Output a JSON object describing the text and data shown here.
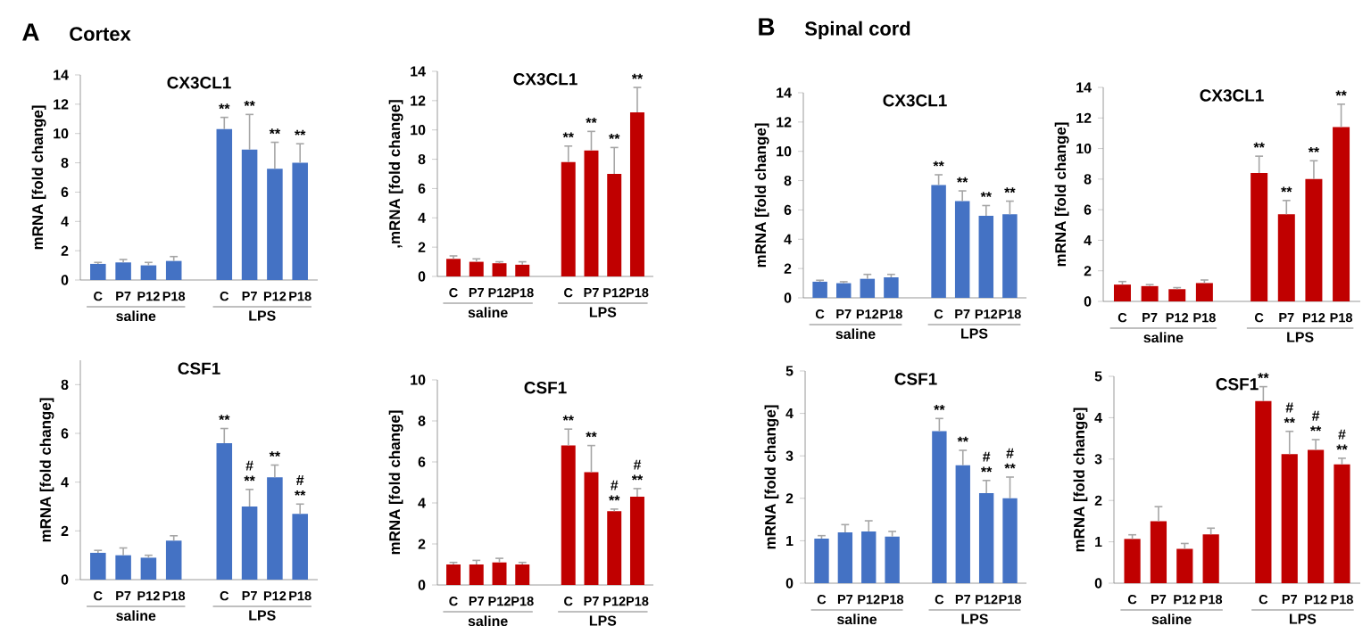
{
  "chart_data": [
    {
      "type": "bar",
      "title": "CX3CL1",
      "ylabel": "mRNA [fold change]",
      "color": "#4472c4",
      "categories": [
        "C",
        "P7",
        "P12",
        "P18",
        null,
        "C",
        "P7",
        "P12",
        "P18"
      ],
      "values": [
        1.1,
        1.2,
        1.0,
        1.3,
        null,
        10.3,
        8.9,
        7.6,
        8.0
      ],
      "errors": [
        0.1,
        0.2,
        0.2,
        0.3,
        null,
        0.8,
        2.4,
        1.8,
        1.3
      ],
      "value_labels": [
        null,
        null,
        null,
        null,
        null,
        "**",
        "**",
        "**",
        "**"
      ],
      "ylim": [
        0,
        14
      ],
      "yticks": [
        0,
        2,
        4,
        6,
        8,
        10,
        12,
        14
      ],
      "annotations": [
        "A",
        "Cortex",
        "saline",
        "LPS"
      ]
    },
    {
      "type": "bar",
      "title": "CX3CL1",
      "ylabel": ",mRNA [fold change]",
      "color": "#c00000",
      "categories": [
        "C",
        "P7",
        "P12",
        "P18",
        null,
        "C",
        "P7",
        "P12",
        "P18"
      ],
      "values": [
        1.2,
        1.0,
        0.9,
        0.8,
        null,
        7.8,
        8.6,
        7.0,
        11.2
      ],
      "errors": [
        0.2,
        0.2,
        0.1,
        0.2,
        null,
        1.1,
        1.3,
        1.8,
        1.7
      ],
      "value_labels": [
        null,
        null,
        null,
        null,
        null,
        "**",
        "**",
        "**",
        "**"
      ],
      "ylim": [
        0,
        14
      ],
      "yticks": [
        0,
        2,
        4,
        6,
        8,
        10,
        12,
        14
      ],
      "annotations": [
        "saline",
        "LPS"
      ]
    },
    {
      "type": "bar",
      "title": "CX3CL1",
      "ylabel": "mRNA [fold change]",
      "color": "#4472c4",
      "categories": [
        "C",
        "P7",
        "P12",
        "P18",
        null,
        "C",
        "P7",
        "P12",
        "P18"
      ],
      "values": [
        1.1,
        1.0,
        1.3,
        1.4,
        null,
        7.7,
        6.6,
        5.6,
        5.7
      ],
      "errors": [
        0.1,
        0.1,
        0.3,
        0.2,
        null,
        0.7,
        0.7,
        0.7,
        0.9
      ],
      "value_labels": [
        null,
        null,
        null,
        null,
        null,
        "**",
        "**",
        "**",
        "**"
      ],
      "ylim": [
        0,
        14
      ],
      "yticks": [
        0,
        2,
        4,
        6,
        8,
        10,
        12,
        14
      ],
      "annotations": [
        "B",
        "Spinal cord",
        "saline",
        "LPS"
      ]
    },
    {
      "type": "bar",
      "title": "CX3CL1",
      "ylabel": "mRNA [fold change]",
      "color": "#c00000",
      "categories": [
        "C",
        "P7",
        "P12",
        "P18",
        null,
        "C",
        "P7",
        "P12",
        "P18"
      ],
      "values": [
        1.1,
        1.0,
        0.8,
        1.2,
        null,
        8.4,
        5.7,
        8.0,
        11.4
      ],
      "errors": [
        0.2,
        0.1,
        0.1,
        0.2,
        null,
        1.1,
        0.9,
        1.2,
        1.5
      ],
      "value_labels": [
        null,
        null,
        null,
        null,
        null,
        "**",
        "**",
        "**",
        "**"
      ],
      "ylim": [
        0,
        14
      ],
      "yticks": [
        0,
        2,
        4,
        6,
        8,
        10,
        12,
        14
      ],
      "annotations": [
        "saline",
        "LPS"
      ]
    },
    {
      "type": "bar",
      "title": "CSF1",
      "ylabel": "mRNA [fold change]",
      "color": "#4472c4",
      "categories": [
        "C",
        "P7",
        "P12",
        "P18",
        null,
        "C",
        "P7",
        "P12",
        "P18"
      ],
      "values": [
        1.1,
        1.0,
        0.9,
        1.6,
        null,
        5.6,
        3.0,
        4.2,
        2.7
      ],
      "errors": [
        0.1,
        0.3,
        0.1,
        0.2,
        null,
        0.6,
        0.7,
        0.5,
        0.4
      ],
      "value_labels": [
        null,
        null,
        null,
        null,
        null,
        "**",
        "# **",
        "**",
        "# **"
      ],
      "ylim": [
        0,
        9
      ],
      "yticks": [
        0,
        2,
        4,
        6,
        8
      ],
      "annotations": [
        "saline",
        "LPS"
      ]
    },
    {
      "type": "bar",
      "title": "CSF1",
      "ylabel": "mRNA [fold change]",
      "color": "#c00000",
      "categories": [
        "C",
        "P7",
        "P12",
        "P18",
        null,
        "C",
        "P7",
        "P12",
        "P18"
      ],
      "values": [
        1.0,
        1.0,
        1.1,
        1.0,
        null,
        6.8,
        5.5,
        3.6,
        4.3
      ],
      "errors": [
        0.1,
        0.2,
        0.2,
        0.1,
        null,
        0.8,
        1.3,
        0.1,
        0.4
      ],
      "value_labels": [
        null,
        null,
        null,
        null,
        null,
        "**",
        "**",
        "# **",
        "# **"
      ],
      "ylim": [
        0,
        10
      ],
      "yticks": [
        0,
        2,
        4,
        6,
        8,
        10
      ],
      "annotations": [
        "saline",
        "LPS"
      ]
    },
    {
      "type": "bar",
      "title": "CSF1",
      "ylabel": "mRNA [fold change]",
      "color": "#4472c4",
      "categories": [
        "C",
        "P7",
        "P12",
        "P18",
        null,
        "C",
        "P7",
        "P12",
        "P18"
      ],
      "values": [
        1.05,
        1.2,
        1.22,
        1.1,
        null,
        3.58,
        2.78,
        2.12,
        2.0
      ],
      "errors": [
        0.07,
        0.18,
        0.25,
        0.12,
        null,
        0.3,
        0.35,
        0.3,
        0.5
      ],
      "value_labels": [
        null,
        null,
        null,
        null,
        null,
        "**",
        "**",
        "# **",
        "# **"
      ],
      "ylim": [
        0,
        5
      ],
      "yticks": [
        0,
        1,
        2,
        3,
        4,
        5
      ],
      "annotations": [
        "saline",
        "LPS"
      ]
    },
    {
      "type": "bar",
      "title": "CSF1",
      "ylabel": "mRNA [fold change]",
      "color": "#c00000",
      "categories": [
        "C",
        "P7",
        "P12",
        "P18",
        null,
        "C",
        "P7",
        "P12",
        "P18"
      ],
      "values": [
        1.07,
        1.5,
        0.83,
        1.18,
        null,
        4.4,
        3.12,
        3.22,
        2.87
      ],
      "errors": [
        0.1,
        0.35,
        0.13,
        0.15,
        null,
        0.35,
        0.55,
        0.25,
        0.15
      ],
      "value_labels": [
        null,
        null,
        null,
        null,
        null,
        "**",
        "# **",
        "# **",
        "# **"
      ],
      "ylim": [
        0,
        5
      ],
      "yticks": [
        0,
        1,
        2,
        3,
        4,
        5
      ],
      "annotations": [
        "saline",
        "LPS"
      ]
    }
  ]
}
